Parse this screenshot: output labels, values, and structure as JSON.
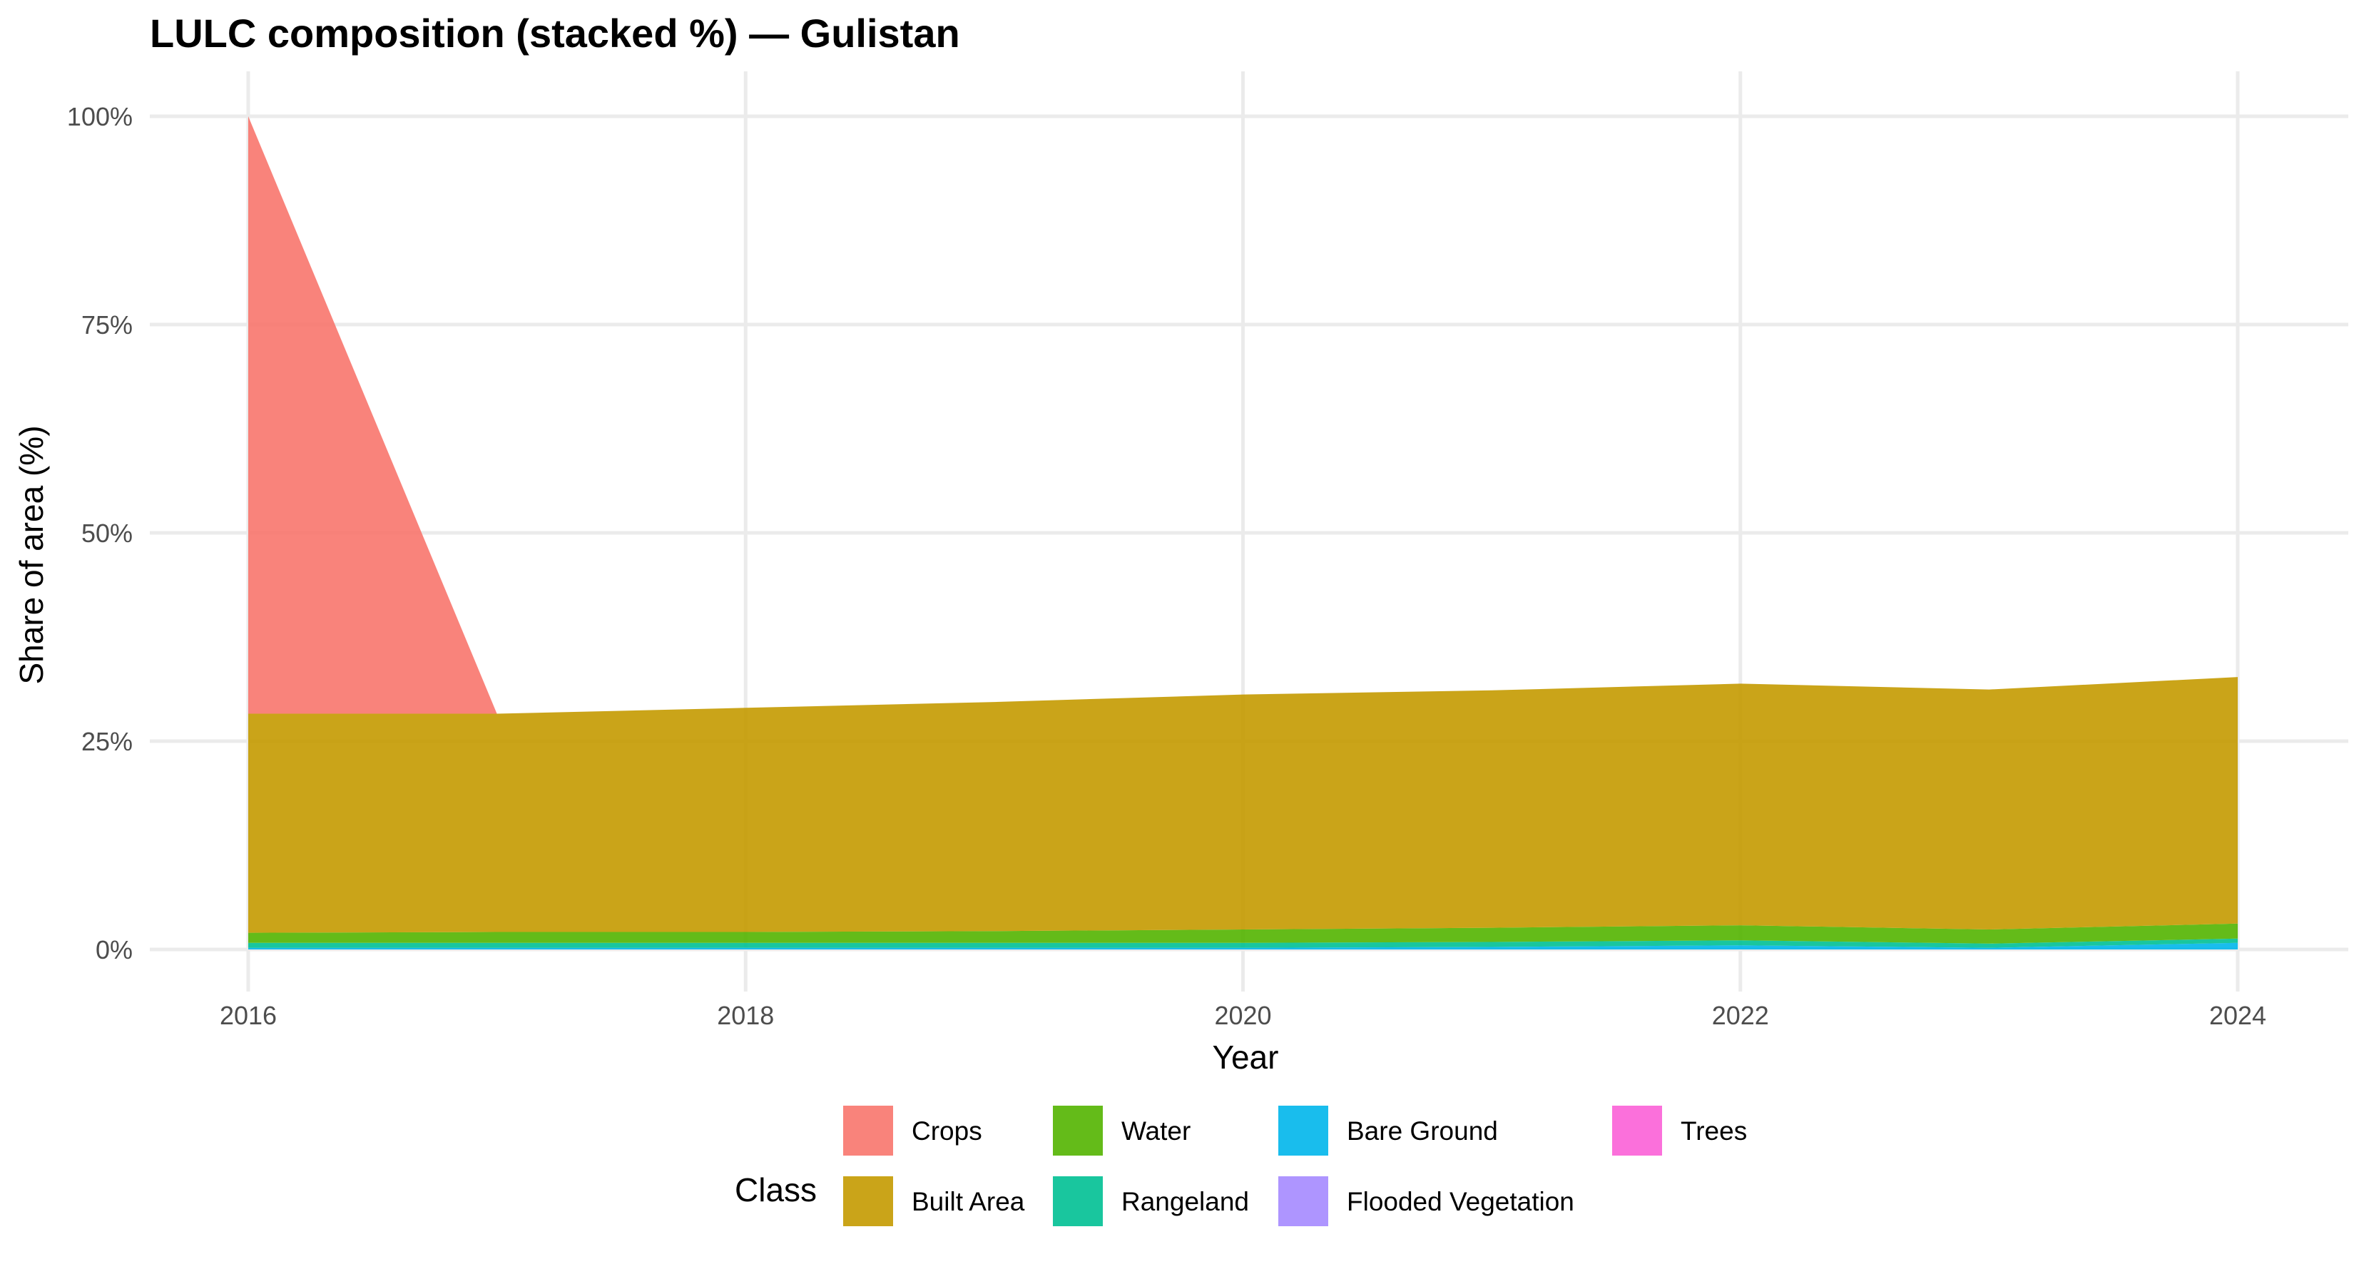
{
  "chart_data": {
    "type": "area",
    "stacked": true,
    "title": "LULC composition (stacked %) — Gulistan",
    "xlabel": "Year",
    "ylabel": "Share of area (%)",
    "legend_title": "Class",
    "legend_position": "bottom",
    "grid": true,
    "xlim": [
      2015.8,
      2024.2
    ],
    "ylim": [
      0,
      100
    ],
    "x_ticks": [
      2016,
      2018,
      2020,
      2022,
      2024
    ],
    "y_ticks": [
      0,
      25,
      50,
      75,
      100
    ],
    "y_tick_labels": [
      "0%",
      "25%",
      "50%",
      "75%",
      "100%"
    ],
    "x": [
      2016,
      2017,
      2018,
      2019,
      2020,
      2021,
      2022,
      2023,
      2024
    ],
    "stack_order": [
      "Trees",
      "Flooded Vegetation",
      "Bare Ground",
      "Rangeland",
      "Water",
      "Built Area",
      "Crops"
    ],
    "series": [
      {
        "name": "Crops",
        "color": "#F8766D",
        "values": [
          71.7,
          0,
          0,
          0,
          0,
          0,
          0,
          0,
          0
        ]
      },
      {
        "name": "Built Area",
        "color": "#C49A00",
        "values": [
          26.3,
          26.2,
          26.9,
          27.5,
          28.2,
          28.5,
          29.0,
          28.8,
          29.6
        ]
      },
      {
        "name": "Water",
        "color": "#53B400",
        "values": [
          1.2,
          1.3,
          1.3,
          1.4,
          1.6,
          1.7,
          1.8,
          1.7,
          1.8
        ]
      },
      {
        "name": "Rangeland",
        "color": "#00C094",
        "values": [
          0.6,
          0.6,
          0.6,
          0.6,
          0.6,
          0.6,
          0.6,
          0.5,
          0.5
        ]
      },
      {
        "name": "Bare Ground",
        "color": "#00B6EB",
        "values": [
          0.2,
          0.2,
          0.2,
          0.2,
          0.2,
          0.3,
          0.5,
          0.2,
          0.8
        ]
      },
      {
        "name": "Flooded Vegetation",
        "color": "#A58AFF",
        "values": [
          0,
          0,
          0,
          0,
          0,
          0,
          0,
          0,
          0
        ]
      },
      {
        "name": "Trees",
        "color": "#FB61D7",
        "values": [
          0,
          0,
          0,
          0,
          0,
          0,
          0,
          0,
          0
        ]
      }
    ],
    "legend_rows": [
      [
        "Crops",
        "Water",
        "Bare Ground",
        "Trees"
      ],
      [
        "Built Area",
        "Rangeland",
        "Flooded Vegetation"
      ]
    ]
  }
}
